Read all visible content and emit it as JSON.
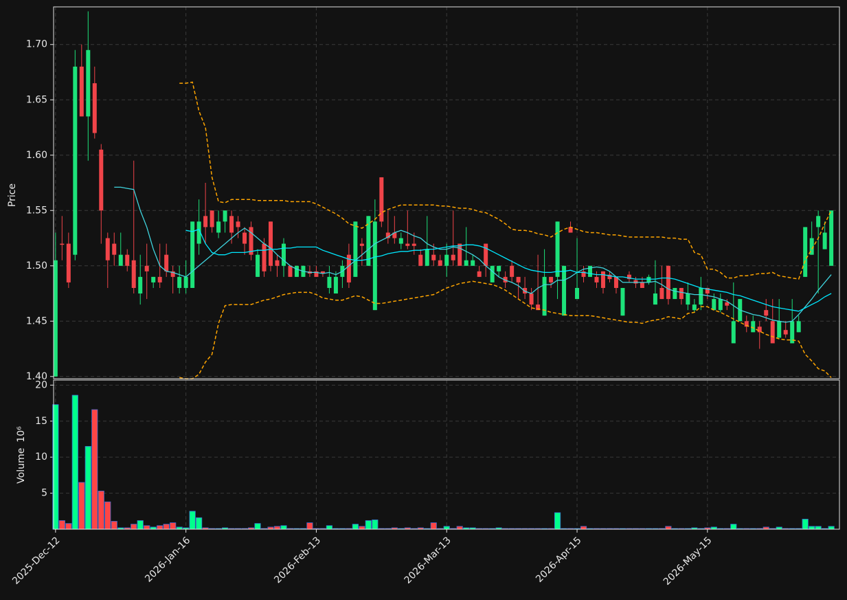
{
  "chart_data": {
    "type": "candlestick",
    "ylabel": "Price",
    "volume_label": "Volume",
    "volume_scale": "10⁶",
    "categories": [
      "2025-Dec-12",
      null,
      null,
      null,
      null,
      null,
      null,
      null,
      null,
      null,
      null,
      null,
      null,
      null,
      null,
      null,
      null,
      null,
      null,
      null,
      "2026-Jan-16",
      null,
      null,
      null,
      null,
      null,
      null,
      null,
      null,
      null,
      null,
      null,
      null,
      null,
      null,
      null,
      null,
      null,
      null,
      null,
      "2026-Feb-13",
      null,
      null,
      null,
      null,
      null,
      null,
      null,
      null,
      null,
      null,
      null,
      null,
      null,
      null,
      null,
      null,
      null,
      null,
      null,
      "2026-Mar-13",
      null,
      null,
      null,
      null,
      null,
      null,
      null,
      null,
      null,
      null,
      null,
      null,
      null,
      null,
      null,
      null,
      null,
      null,
      null,
      "2026-Apr-15",
      null,
      null,
      null,
      null,
      null,
      null,
      null,
      null,
      null,
      null,
      null,
      null,
      null,
      null,
      null,
      null,
      null,
      null,
      null,
      "2026-May-15",
      null,
      null,
      null,
      null,
      null,
      null,
      null,
      null,
      null,
      null,
      null,
      null,
      null,
      null,
      null,
      null,
      null,
      null,
      null
    ],
    "open": [
      1.4,
      1.52,
      1.52,
      1.51,
      1.68,
      1.635,
      1.665,
      1.605,
      1.525,
      1.52,
      1.5,
      1.51,
      1.505,
      1.475,
      1.5,
      1.485,
      1.49,
      1.51,
      1.495,
      1.48,
      1.48,
      1.48,
      1.52,
      1.545,
      1.55,
      1.53,
      1.54,
      1.545,
      1.54,
      1.53,
      1.535,
      1.49,
      1.52,
      1.54,
      1.505,
      1.5,
      1.5,
      1.49,
      1.49,
      1.495,
      1.495,
      1.495,
      1.48,
      1.475,
      1.49,
      1.51,
      1.49,
      1.52,
      1.5,
      1.46,
      1.58,
      1.53,
      1.53,
      1.52,
      1.52,
      1.52,
      1.51,
      1.5,
      1.51,
      1.505,
      1.5,
      1.51,
      1.52,
      1.5,
      1.5,
      1.495,
      1.52,
      1.485,
      1.495,
      1.49,
      1.5,
      1.49,
      1.48,
      1.475,
      1.465,
      1.455,
      1.49,
      1.49,
      1.455,
      1.535,
      1.47,
      1.495,
      1.49,
      1.49,
      1.495,
      1.492,
      1.49,
      1.455,
      1.492,
      1.487,
      1.485,
      1.485,
      1.465,
      1.48,
      1.5,
      1.47,
      1.48,
      1.465,
      1.46,
      1.465,
      1.48,
      1.46,
      1.46,
      1.467,
      1.43,
      1.45,
      1.45,
      1.44,
      1.445,
      1.46,
      1.45,
      1.435,
      1.442,
      1.43,
      1.44,
      1.49,
      1.51,
      1.535,
      1.515,
      1.5
    ],
    "high": [
      1.53,
      1.545,
      1.53,
      1.695,
      1.7,
      1.73,
      1.68,
      1.61,
      1.53,
      1.53,
      1.53,
      1.515,
      1.595,
      1.51,
      1.52,
      1.49,
      1.52,
      1.52,
      1.5,
      1.5,
      1.505,
      1.54,
      1.56,
      1.575,
      1.55,
      1.55,
      1.55,
      1.55,
      1.545,
      1.535,
      1.54,
      1.515,
      1.525,
      1.54,
      1.51,
      1.525,
      1.5,
      1.5,
      1.5,
      1.5,
      1.5,
      1.495,
      1.5,
      1.495,
      1.505,
      1.52,
      1.54,
      1.525,
      1.545,
      1.56,
      1.58,
      1.55,
      1.545,
      1.53,
      1.55,
      1.53,
      1.515,
      1.545,
      1.52,
      1.51,
      1.52,
      1.55,
      1.52,
      1.535,
      1.51,
      1.5,
      1.52,
      1.5,
      1.5,
      1.495,
      1.505,
      1.49,
      1.49,
      1.48,
      1.51,
      1.515,
      1.49,
      1.54,
      1.5,
      1.54,
      1.525,
      1.5,
      1.5,
      1.495,
      1.495,
      1.495,
      1.49,
      1.48,
      1.495,
      1.49,
      1.49,
      1.492,
      1.505,
      1.5,
      1.5,
      1.48,
      1.48,
      1.485,
      1.47,
      1.49,
      1.48,
      1.475,
      1.475,
      1.47,
      1.485,
      1.47,
      1.455,
      1.455,
      1.45,
      1.47,
      1.47,
      1.47,
      1.45,
      1.47,
      1.455,
      1.535,
      1.54,
      1.55,
      1.54,
      1.55
    ],
    "low": [
      1.4,
      1.505,
      1.48,
      1.505,
      1.635,
      1.595,
      1.615,
      1.52,
      1.48,
      1.5,
      1.5,
      1.495,
      1.475,
      1.465,
      1.47,
      1.48,
      1.48,
      1.49,
      1.475,
      1.475,
      1.475,
      1.48,
      1.51,
      1.52,
      1.53,
      1.525,
      1.53,
      1.52,
      1.525,
      1.51,
      1.505,
      1.49,
      1.49,
      1.495,
      1.49,
      1.49,
      1.49,
      1.49,
      1.49,
      1.49,
      1.49,
      1.49,
      1.475,
      1.475,
      1.48,
      1.48,
      1.49,
      1.5,
      1.5,
      1.46,
      1.535,
      1.52,
      1.52,
      1.515,
      1.515,
      1.51,
      1.5,
      1.5,
      1.5,
      1.5,
      1.49,
      1.5,
      1.5,
      1.5,
      1.5,
      1.49,
      1.49,
      1.485,
      1.49,
      1.48,
      1.485,
      1.47,
      1.47,
      1.46,
      1.46,
      1.455,
      1.48,
      1.47,
      1.455,
      1.53,
      1.47,
      1.485,
      1.49,
      1.48,
      1.475,
      1.485,
      1.475,
      1.455,
      1.485,
      1.48,
      1.48,
      1.483,
      1.465,
      1.47,
      1.465,
      1.47,
      1.465,
      1.46,
      1.458,
      1.46,
      1.47,
      1.46,
      1.458,
      1.46,
      1.43,
      1.45,
      1.44,
      1.44,
      1.425,
      1.45,
      1.43,
      1.435,
      1.435,
      1.43,
      1.44,
      1.49,
      1.51,
      1.475,
      1.515,
      1.5
    ],
    "close": [
      1.505,
      1.519,
      1.485,
      1.68,
      1.635,
      1.695,
      1.62,
      1.55,
      1.505,
      1.51,
      1.51,
      1.5,
      1.48,
      1.49,
      1.495,
      1.49,
      1.485,
      1.495,
      1.49,
      1.49,
      1.49,
      1.54,
      1.54,
      1.535,
      1.535,
      1.54,
      1.55,
      1.53,
      1.535,
      1.52,
      1.51,
      1.51,
      1.495,
      1.5,
      1.5,
      1.52,
      1.49,
      1.5,
      1.5,
      1.493,
      1.49,
      1.493,
      1.49,
      1.49,
      1.5,
      1.485,
      1.54,
      1.518,
      1.545,
      1.54,
      1.54,
      1.525,
      1.525,
      1.525,
      1.518,
      1.518,
      1.5,
      1.515,
      1.505,
      1.5,
      1.51,
      1.505,
      1.5,
      1.505,
      1.505,
      1.49,
      1.5,
      1.5,
      1.5,
      1.485,
      1.49,
      1.485,
      1.475,
      1.465,
      1.46,
      1.49,
      1.485,
      1.54,
      1.5,
      1.53,
      1.48,
      1.49,
      1.5,
      1.485,
      1.48,
      1.488,
      1.48,
      1.48,
      1.488,
      1.484,
      1.48,
      1.49,
      1.475,
      1.47,
      1.47,
      1.48,
      1.47,
      1.475,
      1.465,
      1.48,
      1.475,
      1.47,
      1.47,
      1.464,
      1.45,
      1.47,
      1.445,
      1.45,
      1.44,
      1.455,
      1.43,
      1.45,
      1.438,
      1.45,
      1.45,
      1.535,
      1.525,
      1.545,
      1.53,
      1.55
    ],
    "volume": [
      17.3,
      1.2,
      0.8,
      18.6,
      6.5,
      11.5,
      16.6,
      5.3,
      3.8,
      1.1,
      0.2,
      0.2,
      0.7,
      1.2,
      0.5,
      0.3,
      0.5,
      0.7,
      0.9,
      0.3,
      0.2,
      2.5,
      1.6,
      0.2,
      0.1,
      0.1,
      0.2,
      0.1,
      0.1,
      0.1,
      0.2,
      0.8,
      0.1,
      0.3,
      0.4,
      0.5,
      0.1,
      0.1,
      0.1,
      0.9,
      0.1,
      0.1,
      0.5,
      0.1,
      0.1,
      0.1,
      0.7,
      0.4,
      1.2,
      1.3,
      0.1,
      0.1,
      0.2,
      0.1,
      0.2,
      0.1,
      0.2,
      0.1,
      0.9,
      0.1,
      0.4,
      0.1,
      0.4,
      0.2,
      0.2,
      0.1,
      0.1,
      0.1,
      0.2,
      0.1,
      0.1,
      0.1,
      0.1,
      0.1,
      0.1,
      0.1,
      0.1,
      2.3,
      0.1,
      0.1,
      0.1,
      0.4,
      0.1,
      0.1,
      0.1,
      0.1,
      0.1,
      0.1,
      0.1,
      0.1,
      0.1,
      0.1,
      0.1,
      0.1,
      0.4,
      0.1,
      0.1,
      0.1,
      0.2,
      0.1,
      0.2,
      0.3,
      0.1,
      0.1,
      0.7,
      0.1,
      0.1,
      0.1,
      0.1,
      0.3,
      0.1,
      0.3,
      0.1,
      0.1,
      0.1,
      1.4,
      0.4,
      0.4,
      0.1,
      0.4
    ],
    "up_color": "#1de27a",
    "down_color": "#f04449",
    "volume_up_color": "#00ff8c",
    "volume_down_color": "#ff4545",
    "volume_edge_color": "#3d6bd0",
    "overlays": [
      {
        "color": "#3fd4de",
        "dashed": false,
        "values": [
          null,
          null,
          null,
          null,
          null,
          null,
          null,
          null,
          null,
          1.571,
          1.571,
          1.57,
          1.569,
          1.55,
          1.535,
          1.515,
          1.5,
          1.495,
          1.494,
          1.492,
          1.49,
          1.495,
          1.5,
          1.505,
          1.51,
          1.515,
          1.52,
          1.525,
          1.53,
          1.534,
          1.53,
          1.525,
          1.52,
          1.516,
          1.51,
          1.505,
          1.5,
          1.497,
          1.495,
          1.494,
          1.494,
          1.493,
          1.494,
          1.492,
          1.495,
          1.5,
          1.505,
          1.51,
          1.515,
          1.52,
          1.523,
          1.526,
          1.53,
          1.532,
          1.53,
          1.527,
          1.525,
          1.52,
          1.517,
          1.515,
          1.515,
          1.517,
          1.516,
          1.513,
          1.51,
          1.506,
          1.5,
          1.495,
          1.49,
          1.487,
          1.485,
          1.482,
          1.477,
          1.475,
          1.48,
          1.483,
          1.483,
          1.487,
          1.487,
          1.49,
          1.494,
          1.497,
          1.498,
          1.499,
          1.498,
          1.495,
          1.49,
          1.485,
          1.485,
          1.485,
          1.485,
          1.485,
          1.486,
          1.483,
          1.479,
          1.477,
          1.476,
          1.475,
          1.474,
          1.474,
          1.473,
          1.472,
          1.47,
          1.468,
          1.464,
          1.46,
          1.458,
          1.456,
          1.455,
          1.453,
          1.451,
          1.45,
          1.449,
          1.45,
          1.456,
          1.463,
          1.47,
          1.478,
          1.485,
          1.492
        ]
      },
      {
        "color": "#00e8ff",
        "dashed": false,
        "values": [
          null,
          null,
          null,
          null,
          null,
          null,
          null,
          null,
          null,
          null,
          null,
          null,
          null,
          null,
          null,
          null,
          null,
          null,
          null,
          null,
          1.532,
          1.531,
          1.533,
          1.52,
          1.512,
          1.51,
          1.51,
          1.512,
          1.512,
          1.512,
          1.513,
          1.514,
          1.514,
          1.515,
          1.515,
          1.516,
          1.516,
          1.517,
          1.517,
          1.517,
          1.517,
          1.514,
          1.512,
          1.51,
          1.508,
          1.506,
          1.505,
          1.505,
          1.506,
          1.508,
          1.509,
          1.511,
          1.512,
          1.513,
          1.513,
          1.514,
          1.514,
          1.515,
          1.515,
          1.516,
          1.517,
          1.518,
          1.518,
          1.519,
          1.519,
          1.518,
          1.516,
          1.513,
          1.51,
          1.507,
          1.504,
          1.501,
          1.498,
          1.496,
          1.495,
          1.494,
          1.494,
          1.495,
          1.495,
          1.496,
          1.494,
          1.494,
          1.493,
          1.492,
          1.492,
          1.491,
          1.49,
          1.49,
          1.489,
          1.488,
          1.488,
          1.488,
          1.488,
          1.489,
          1.489,
          1.488,
          1.486,
          1.484,
          1.482,
          1.48,
          1.479,
          1.478,
          1.477,
          1.476,
          1.474,
          1.473,
          1.471,
          1.469,
          1.467,
          1.465,
          1.463,
          1.462,
          1.461,
          1.46,
          1.459,
          1.462,
          1.465,
          1.468,
          1.472,
          1.475
        ]
      },
      {
        "color": "#ffa500",
        "dashed": true,
        "values": [
          null,
          null,
          null,
          null,
          null,
          null,
          null,
          null,
          null,
          null,
          null,
          null,
          null,
          null,
          null,
          null,
          null,
          null,
          null,
          1.665,
          1.665,
          1.666,
          1.64,
          1.625,
          1.58,
          1.558,
          1.557,
          1.56,
          1.56,
          1.56,
          1.56,
          1.559,
          1.559,
          1.559,
          1.559,
          1.559,
          1.558,
          1.558,
          1.558,
          1.558,
          1.556,
          1.553,
          1.55,
          1.547,
          1.543,
          1.538,
          1.536,
          1.534,
          1.538,
          1.542,
          1.548,
          1.551,
          1.553,
          1.555,
          1.555,
          1.555,
          1.555,
          1.555,
          1.555,
          1.554,
          1.554,
          1.553,
          1.552,
          1.552,
          1.551,
          1.549,
          1.548,
          1.545,
          1.542,
          1.538,
          1.533,
          1.532,
          1.532,
          1.531,
          1.529,
          1.528,
          1.526,
          1.53,
          1.533,
          1.535,
          1.533,
          1.531,
          1.53,
          1.53,
          1.529,
          1.528,
          1.528,
          1.527,
          1.526,
          1.526,
          1.526,
          1.526,
          1.526,
          1.526,
          1.525,
          1.525,
          1.524,
          1.524,
          1.512,
          1.51,
          1.497,
          1.497,
          1.494,
          1.489,
          1.489,
          1.491,
          1.491,
          1.492,
          1.493,
          1.493,
          1.494,
          1.491,
          1.49,
          1.489,
          1.488,
          1.505,
          1.515,
          1.525,
          1.538,
          1.55
        ]
      },
      {
        "color": "#ffa500",
        "dashed": true,
        "values": [
          null,
          null,
          null,
          null,
          null,
          null,
          null,
          null,
          null,
          null,
          null,
          null,
          null,
          null,
          null,
          null,
          null,
          null,
          null,
          1.399,
          1.398,
          1.398,
          1.402,
          1.413,
          1.42,
          1.448,
          1.464,
          1.465,
          1.465,
          1.465,
          1.465,
          1.467,
          1.469,
          1.47,
          1.472,
          1.474,
          1.475,
          1.476,
          1.476,
          1.476,
          1.474,
          1.471,
          1.47,
          1.469,
          1.469,
          1.471,
          1.473,
          1.472,
          1.469,
          1.466,
          1.466,
          1.467,
          1.468,
          1.469,
          1.47,
          1.471,
          1.472,
          1.473,
          1.474,
          1.477,
          1.48,
          1.482,
          1.484,
          1.485,
          1.486,
          1.485,
          1.484,
          1.483,
          1.481,
          1.478,
          1.474,
          1.47,
          1.466,
          1.462,
          1.461,
          1.46,
          1.458,
          1.457,
          1.456,
          1.455,
          1.455,
          1.455,
          1.455,
          1.454,
          1.453,
          1.452,
          1.451,
          1.45,
          1.449,
          1.449,
          1.448,
          1.45,
          1.451,
          1.452,
          1.454,
          1.453,
          1.452,
          1.457,
          1.458,
          1.463,
          1.463,
          1.46,
          1.458,
          1.455,
          1.452,
          1.449,
          1.446,
          1.444,
          1.441,
          1.438,
          1.436,
          1.434,
          1.433,
          1.433,
          1.432,
          1.42,
          1.414,
          1.407,
          1.405,
          1.399
        ]
      }
    ],
    "ylim": [
      1.398,
      1.734
    ],
    "yticks": [
      {
        "value": 1.4,
        "label": "1.40"
      },
      1.45,
      {
        "value": 1.5,
        "label": "1.50"
      },
      1.55,
      {
        "value": 1.6,
        "label": "1.60"
      },
      1.65,
      {
        "value": 1.7,
        "label": "1.70"
      }
    ],
    "volume_ylim": [
      0,
      20.7
    ],
    "volume_yticks": [
      5,
      10,
      15,
      20
    ],
    "grid": true
  }
}
